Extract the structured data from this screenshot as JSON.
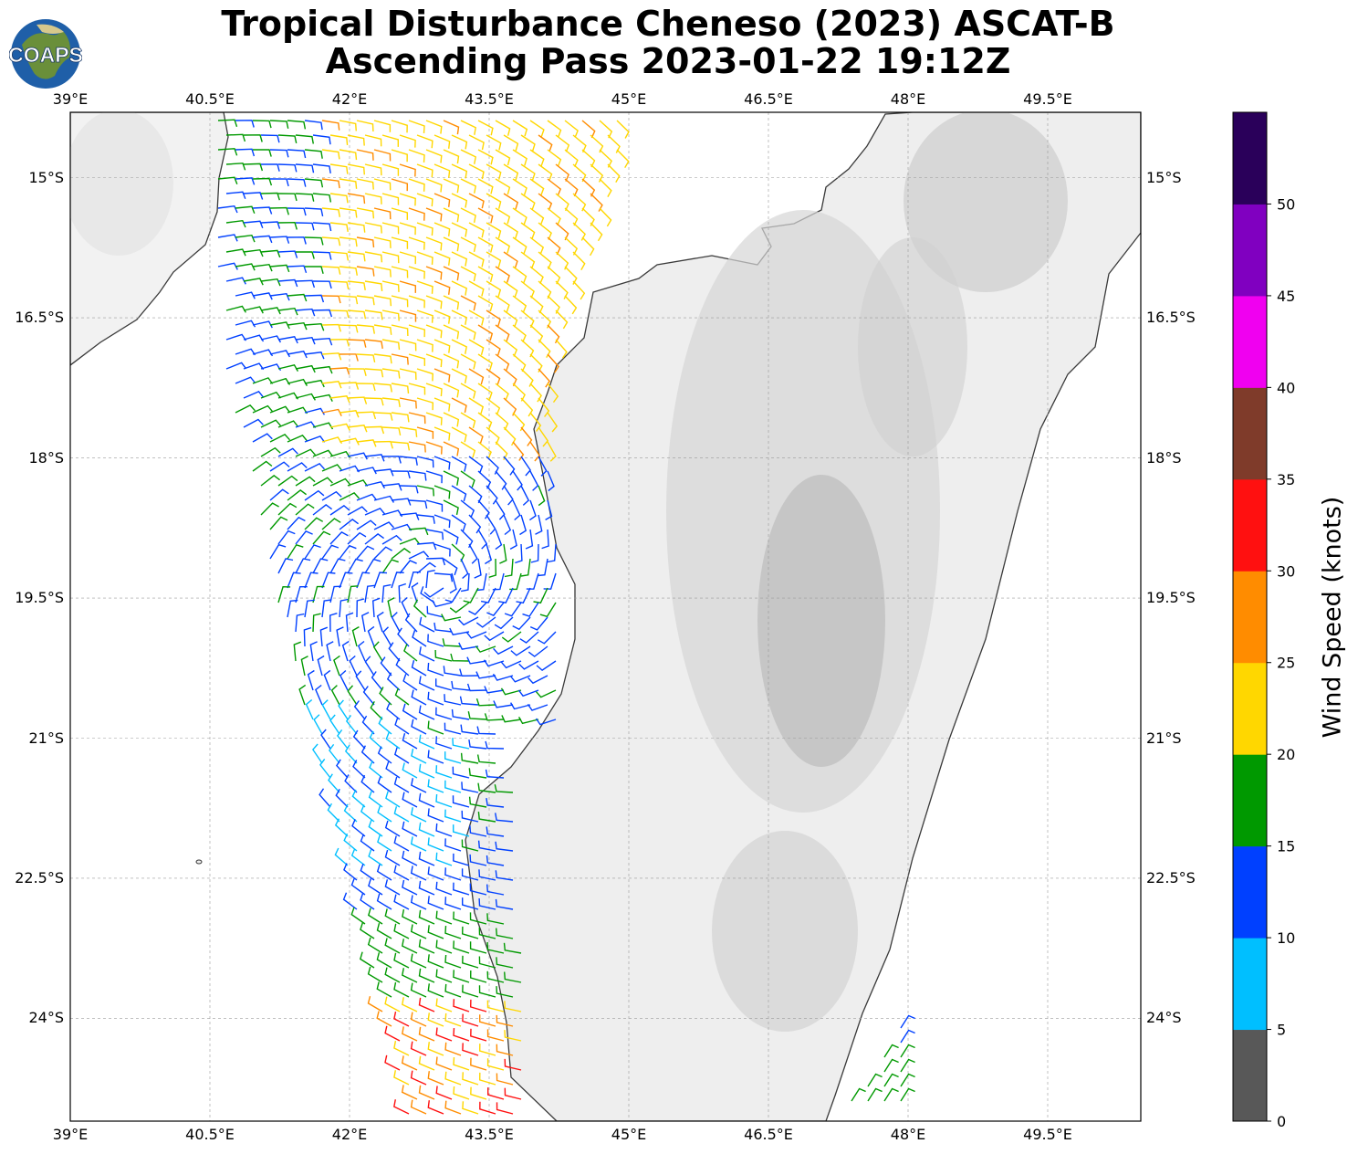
{
  "title": {
    "line1": "Tropical Disturbance Cheneso (2023) ASCAT-B",
    "line2": "Ascending Pass 2023-01-22 19:12Z"
  },
  "logo": {
    "text": "COAPS"
  },
  "map": {
    "lon_range": [
      39,
      50.5
    ],
    "lat_range": [
      -25.1,
      -14.3
    ],
    "lon_ticks": [
      {
        "value": 39,
        "label": "39°E"
      },
      {
        "value": 40.5,
        "label": "40.5°E"
      },
      {
        "value": 42,
        "label": "42°E"
      },
      {
        "value": 43.5,
        "label": "43.5°E"
      },
      {
        "value": 45,
        "label": "45°E"
      },
      {
        "value": 46.5,
        "label": "46.5°E"
      },
      {
        "value": 48,
        "label": "48°E"
      },
      {
        "value": 49.5,
        "label": "49.5°E"
      }
    ],
    "lat_ticks": [
      {
        "value": -15,
        "label": "15°S"
      },
      {
        "value": -16.5,
        "label": "16.5°S"
      },
      {
        "value": -18,
        "label": "18°S"
      },
      {
        "value": -19.5,
        "label": "19.5°S"
      },
      {
        "value": -21,
        "label": "21°S"
      },
      {
        "value": -22.5,
        "label": "22.5°S"
      },
      {
        "value": -24,
        "label": "24°S"
      }
    ],
    "grid": true,
    "land_color": "#f2f2f2",
    "coast_color": "#3a3a3a"
  },
  "colorbar": {
    "label": "Wind Speed (knots)",
    "min": 0,
    "max": 55,
    "tick_labels": [
      "0",
      "5",
      "10",
      "15",
      "20",
      "25",
      "30",
      "35",
      "40",
      "45",
      "50"
    ],
    "colors": [
      "#585858",
      "#00bfff",
      "#0040ff",
      "#009900",
      "#ffd700",
      "#ff8c00",
      "#ff1010",
      "#7f3b2a",
      "#f000f0",
      "#8000c0",
      "#2a005a"
    ]
  }
}
